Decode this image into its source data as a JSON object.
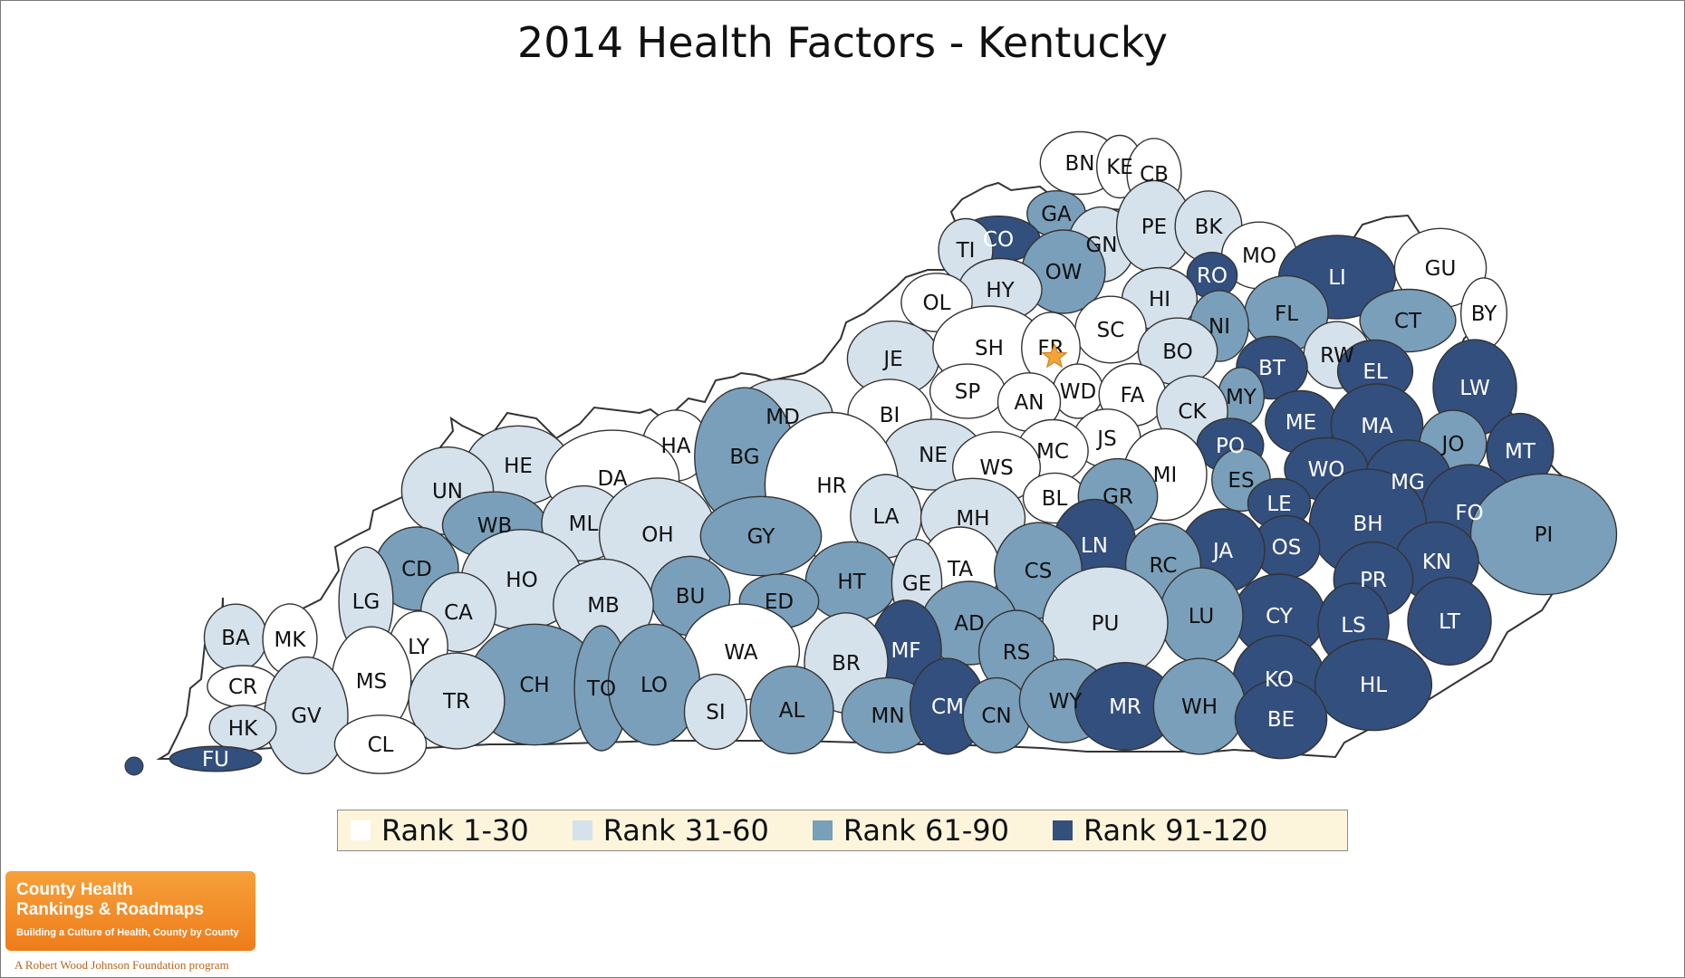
{
  "title": "2014 Health Factors - Kentucky",
  "colors": {
    "rank_1_30": "#ffffff",
    "rank_31_60": "#d5e2ec",
    "rank_61_90": "#7a9fba",
    "rank_91_120": "#334f7e",
    "outline": "#333333",
    "capital_star": "#f2a33a"
  },
  "legend": [
    {
      "label": "Rank 1-30",
      "tier": 1
    },
    {
      "label": "Rank 31-60",
      "tier": 2
    },
    {
      "label": "Rank 61-90",
      "tier": 3
    },
    {
      "label": "Rank 91-120",
      "tier": 4
    }
  ],
  "capital": {
    "county": "FR",
    "symbol": "star-icon"
  },
  "counties": [
    {
      "abbr": "BN",
      "tier": 1
    },
    {
      "abbr": "KE",
      "tier": 1
    },
    {
      "abbr": "CB",
      "tier": 1
    },
    {
      "abbr": "GA",
      "tier": 3
    },
    {
      "abbr": "CO",
      "tier": 4
    },
    {
      "abbr": "TI",
      "tier": 2
    },
    {
      "abbr": "GN",
      "tier": 2
    },
    {
      "abbr": "PE",
      "tier": 2
    },
    {
      "abbr": "BK",
      "tier": 2
    },
    {
      "abbr": "MO",
      "tier": 1
    },
    {
      "abbr": "LI",
      "tier": 4
    },
    {
      "abbr": "GU",
      "tier": 1
    },
    {
      "abbr": "OW",
      "tier": 3
    },
    {
      "abbr": "HY",
      "tier": 2
    },
    {
      "abbr": "OL",
      "tier": 1
    },
    {
      "abbr": "RO",
      "tier": 4
    },
    {
      "abbr": "HI",
      "tier": 2
    },
    {
      "abbr": "BY",
      "tier": 1
    },
    {
      "abbr": "FL",
      "tier": 3
    },
    {
      "abbr": "CT",
      "tier": 3
    },
    {
      "abbr": "NI",
      "tier": 3
    },
    {
      "abbr": "SC",
      "tier": 1
    },
    {
      "abbr": "JE",
      "tier": 2
    },
    {
      "abbr": "SH",
      "tier": 1
    },
    {
      "abbr": "FR",
      "tier": 1
    },
    {
      "abbr": "BO",
      "tier": 2
    },
    {
      "abbr": "RW",
      "tier": 2
    },
    {
      "abbr": "BT",
      "tier": 4
    },
    {
      "abbr": "EL",
      "tier": 4
    },
    {
      "abbr": "LW",
      "tier": 4
    },
    {
      "abbr": "SP",
      "tier": 1
    },
    {
      "abbr": "WD",
      "tier": 1
    },
    {
      "abbr": "FA",
      "tier": 1
    },
    {
      "abbr": "MY",
      "tier": 3
    },
    {
      "abbr": "MD",
      "tier": 2
    },
    {
      "abbr": "BI",
      "tier": 1
    },
    {
      "abbr": "AN",
      "tier": 1
    },
    {
      "abbr": "CK",
      "tier": 2
    },
    {
      "abbr": "ME",
      "tier": 4
    },
    {
      "abbr": "MA",
      "tier": 4
    },
    {
      "abbr": "HA",
      "tier": 1
    },
    {
      "abbr": "JS",
      "tier": 1
    },
    {
      "abbr": "PO",
      "tier": 4
    },
    {
      "abbr": "JO",
      "tier": 3
    },
    {
      "abbr": "MT",
      "tier": 4
    },
    {
      "abbr": "HE",
      "tier": 2
    },
    {
      "abbr": "DA",
      "tier": 1
    },
    {
      "abbr": "BG",
      "tier": 3
    },
    {
      "abbr": "NE",
      "tier": 2
    },
    {
      "abbr": "MC",
      "tier": 1
    },
    {
      "abbr": "WS",
      "tier": 1
    },
    {
      "abbr": "MI",
      "tier": 1
    },
    {
      "abbr": "ES",
      "tier": 3
    },
    {
      "abbr": "WO",
      "tier": 4
    },
    {
      "abbr": "MG",
      "tier": 4
    },
    {
      "abbr": "UN",
      "tier": 2
    },
    {
      "abbr": "HR",
      "tier": 1
    },
    {
      "abbr": "BL",
      "tier": 1
    },
    {
      "abbr": "GR",
      "tier": 3
    },
    {
      "abbr": "LE",
      "tier": 4
    },
    {
      "abbr": "FO",
      "tier": 4
    },
    {
      "abbr": "WB",
      "tier": 3
    },
    {
      "abbr": "ML",
      "tier": 2
    },
    {
      "abbr": "LA",
      "tier": 2
    },
    {
      "abbr": "MH",
      "tier": 2
    },
    {
      "abbr": "BH",
      "tier": 4
    },
    {
      "abbr": "PI",
      "tier": 3
    },
    {
      "abbr": "OH",
      "tier": 2
    },
    {
      "abbr": "GY",
      "tier": 3
    },
    {
      "abbr": "OS",
      "tier": 4
    },
    {
      "abbr": "CD",
      "tier": 3
    },
    {
      "abbr": "LN",
      "tier": 4
    },
    {
      "abbr": "JA",
      "tier": 4
    },
    {
      "abbr": "KN",
      "tier": 4
    },
    {
      "abbr": "HO",
      "tier": 2
    },
    {
      "abbr": "HT",
      "tier": 3
    },
    {
      "abbr": "TA",
      "tier": 1
    },
    {
      "abbr": "RC",
      "tier": 3
    },
    {
      "abbr": "GE",
      "tier": 2
    },
    {
      "abbr": "CS",
      "tier": 3
    },
    {
      "abbr": "PR",
      "tier": 4
    },
    {
      "abbr": "LG",
      "tier": 2
    },
    {
      "abbr": "BU",
      "tier": 3
    },
    {
      "abbr": "ED",
      "tier": 3
    },
    {
      "abbr": "MB",
      "tier": 2
    },
    {
      "abbr": "CA",
      "tier": 2
    },
    {
      "abbr": "CY",
      "tier": 4
    },
    {
      "abbr": "LT",
      "tier": 4
    },
    {
      "abbr": "LY",
      "tier": 1
    },
    {
      "abbr": "BA",
      "tier": 2
    },
    {
      "abbr": "MK",
      "tier": 1
    },
    {
      "abbr": "LU",
      "tier": 3
    },
    {
      "abbr": "LS",
      "tier": 4
    },
    {
      "abbr": "PU",
      "tier": 2
    },
    {
      "abbr": "AD",
      "tier": 3
    },
    {
      "abbr": "MF",
      "tier": 4
    },
    {
      "abbr": "WA",
      "tier": 1
    },
    {
      "abbr": "BR",
      "tier": 2
    },
    {
      "abbr": "RS",
      "tier": 3
    },
    {
      "abbr": "KO",
      "tier": 4
    },
    {
      "abbr": "HL",
      "tier": 4
    },
    {
      "abbr": "CR",
      "tier": 1
    },
    {
      "abbr": "MS",
      "tier": 1
    },
    {
      "abbr": "CH",
      "tier": 3
    },
    {
      "abbr": "TO",
      "tier": 3
    },
    {
      "abbr": "LO",
      "tier": 3
    },
    {
      "abbr": "TR",
      "tier": 2
    },
    {
      "abbr": "GV",
      "tier": 2
    },
    {
      "abbr": "SI",
      "tier": 2
    },
    {
      "abbr": "AL",
      "tier": 3
    },
    {
      "abbr": "MN",
      "tier": 3
    },
    {
      "abbr": "CM",
      "tier": 4
    },
    {
      "abbr": "CN",
      "tier": 3
    },
    {
      "abbr": "WY",
      "tier": 3
    },
    {
      "abbr": "MR",
      "tier": 4
    },
    {
      "abbr": "WH",
      "tier": 3
    },
    {
      "abbr": "BE",
      "tier": 4
    },
    {
      "abbr": "HK",
      "tier": 2
    },
    {
      "abbr": "CL",
      "tier": 1
    },
    {
      "abbr": "FU",
      "tier": 4
    }
  ],
  "logo": {
    "line1": "County Health",
    "line2": "Rankings & Roadmaps",
    "tagline": "Building a Culture of Health, County by County",
    "sponsor": "A Robert Wood Johnson Foundation program"
  }
}
